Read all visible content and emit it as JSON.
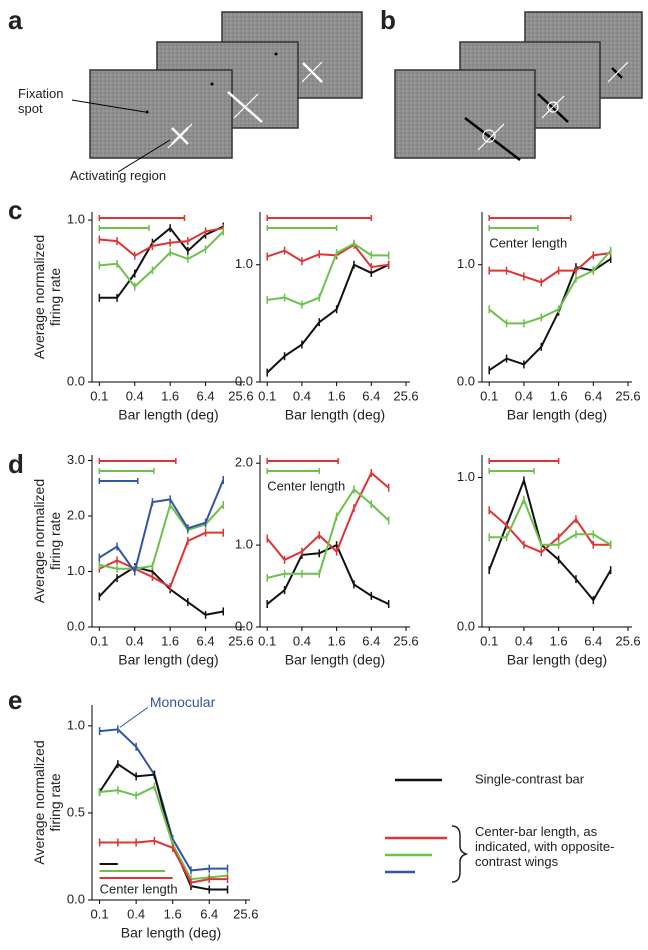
{
  "panels": [
    "a",
    "b",
    "c",
    "d",
    "e"
  ],
  "diagram": {
    "fixation": "Fixation spot",
    "activating": "Activating region"
  },
  "legend": {
    "single": "Single-contrast bar",
    "center": "Center-bar length, as indicated, with opposite-contrast wings"
  },
  "chart_data": [
    {
      "type": "line",
      "xlabel": "Bar length (deg)",
      "ylabel": "Average normalized firing rate",
      "log_x": true,
      "x": [
        0.1,
        0.2,
        0.4,
        0.8,
        1.6,
        3.2,
        6.4,
        12.8
      ],
      "xlim": [
        0.075,
        30
      ],
      "xticks": [
        0.1,
        0.4,
        1.6,
        6.4,
        25.6
      ],
      "ylim": [
        0,
        1.05
      ],
      "yticks": [
        {
          "value": 0,
          "label": "0.0"
        },
        {
          "value": 1,
          "label": "1.0"
        }
      ],
      "series": [
        {
          "color": "#111111",
          "values": [
            0.52,
            0.52,
            0.67,
            0.86,
            0.95,
            0.81,
            0.91,
            0.96
          ]
        },
        {
          "color": "#e03434",
          "values": [
            0.88,
            0.87,
            0.78,
            0.84,
            0.86,
            0.87,
            0.93,
            0.95
          ],
          "center_length": [
            0.1,
            2.8
          ]
        },
        {
          "color": "#6cc24a",
          "values": [
            0.72,
            0.73,
            0.59,
            0.69,
            0.8,
            0.76,
            0.82,
            0.93
          ],
          "center_length": [
            0.1,
            0.7
          ]
        }
      ]
    },
    {
      "type": "line",
      "xlabel": "Bar length (deg)",
      "log_x": true,
      "x": [
        0.1,
        0.2,
        0.4,
        0.8,
        1.6,
        3.2,
        6.4,
        12.8
      ],
      "xlim": [
        0.075,
        30
      ],
      "xticks": [
        0.1,
        0.4,
        1.6,
        6.4,
        25.6
      ],
      "ylim": [
        0,
        1.45
      ],
      "yticks": [
        {
          "value": 0,
          "label": "0.0"
        },
        {
          "value": 1,
          "label": "1.0"
        }
      ],
      "series": [
        {
          "color": "#111111",
          "values": [
            0.08,
            0.22,
            0.32,
            0.51,
            0.62,
            1.0,
            0.93,
            1.0
          ]
        },
        {
          "color": "#e03434",
          "values": [
            1.07,
            1.12,
            1.03,
            1.09,
            1.08,
            1.17,
            0.98,
            1.0
          ],
          "center_length": [
            0.1,
            6.4
          ]
        },
        {
          "color": "#6cc24a",
          "values": [
            0.7,
            0.72,
            0.66,
            0.72,
            1.1,
            1.18,
            1.08,
            1.08
          ],
          "center_length": [
            0.1,
            1.6
          ]
        }
      ]
    },
    {
      "type": "line",
      "xlabel": "Bar length (deg)",
      "log_x": true,
      "annotation": "Center length",
      "x": [
        0.1,
        0.2,
        0.4,
        0.8,
        1.6,
        3.2,
        6.4,
        12.8
      ],
      "xlim": [
        0.075,
        30
      ],
      "xticks": [
        0.1,
        0.4,
        1.6,
        6.4,
        25.6
      ],
      "ylim": [
        0,
        1.45
      ],
      "yticks": [
        {
          "value": 0,
          "label": "0.0"
        },
        {
          "value": 1,
          "label": "1.0"
        }
      ],
      "series": [
        {
          "color": "#111111",
          "values": [
            0.1,
            0.2,
            0.15,
            0.3,
            0.6,
            0.98,
            0.95,
            1.05
          ]
        },
        {
          "color": "#e03434",
          "values": [
            0.95,
            0.95,
            0.9,
            0.85,
            0.95,
            0.95,
            1.08,
            1.1
          ],
          "center_length": [
            0.1,
            2.6
          ]
        },
        {
          "color": "#6cc24a",
          "values": [
            0.62,
            0.5,
            0.5,
            0.55,
            0.62,
            0.88,
            0.95,
            1.12
          ],
          "center_length": [
            0.1,
            0.7
          ]
        }
      ]
    },
    {
      "type": "line",
      "xlabel": "Bar length (deg)",
      "ylabel": "Average normalized firing rate",
      "log_x": true,
      "x": [
        0.1,
        0.2,
        0.4,
        0.8,
        1.6,
        3.2,
        6.4,
        12.8
      ],
      "xlim": [
        0.075,
        30
      ],
      "xticks": [
        0.1,
        0.4,
        1.6,
        6.4,
        25.6
      ],
      "ylim": [
        0,
        3.1
      ],
      "yticks": [
        {
          "value": 0,
          "label": "0.0"
        },
        {
          "value": 1,
          "label": "1.0"
        },
        {
          "value": 2,
          "label": "2.0"
        },
        {
          "value": 3,
          "label": "3.0"
        }
      ],
      "series": [
        {
          "color": "#111111",
          "values": [
            0.55,
            0.88,
            1.08,
            1.0,
            0.68,
            0.45,
            0.22,
            0.28
          ]
        },
        {
          "color": "#e03434",
          "values": [
            1.05,
            1.2,
            1.05,
            0.9,
            0.72,
            1.55,
            1.7,
            1.7
          ],
          "center_length": [
            0.1,
            2
          ]
        },
        {
          "color": "#6cc24a",
          "values": [
            1.12,
            1.05,
            1.05,
            1.1,
            2.2,
            1.75,
            1.85,
            2.2
          ],
          "center_length": [
            0.1,
            0.85
          ]
        },
        {
          "color": "#3454a8",
          "values": [
            1.25,
            1.45,
            1.0,
            2.25,
            2.3,
            1.78,
            1.88,
            2.65
          ],
          "center_length": [
            0.1,
            0.45
          ]
        }
      ]
    },
    {
      "type": "line",
      "xlabel": "Bar length (deg)",
      "log_x": true,
      "annotation": "Center length",
      "x": [
        0.1,
        0.2,
        0.4,
        0.8,
        1.6,
        3.2,
        6.4,
        12.8
      ],
      "xlim": [
        0.075,
        30
      ],
      "xticks": [
        0.1,
        0.4,
        1.6,
        6.4,
        25.6
      ],
      "ylim": [
        0,
        2.1
      ],
      "yticks": [
        {
          "value": 0,
          "label": "0.0"
        },
        {
          "value": 1,
          "label": "1.0"
        },
        {
          "value": 2,
          "label": "2.0"
        }
      ],
      "series": [
        {
          "color": "#111111",
          "values": [
            0.28,
            0.45,
            0.88,
            0.9,
            1.0,
            0.52,
            0.38,
            0.28
          ]
        },
        {
          "color": "#e03434",
          "values": [
            1.08,
            0.82,
            0.92,
            1.12,
            0.92,
            1.45,
            1.88,
            1.7
          ],
          "center_length": [
            0.1,
            1.7
          ]
        },
        {
          "color": "#6cc24a",
          "values": [
            0.6,
            0.65,
            0.65,
            0.65,
            1.35,
            1.68,
            1.5,
            1.3
          ],
          "center_length": [
            0.1,
            0.8
          ]
        }
      ]
    },
    {
      "type": "line",
      "xlabel": "Bar length (deg)",
      "log_x": true,
      "x": [
        0.1,
        0.2,
        0.4,
        0.8,
        1.6,
        3.2,
        6.4,
        12.8
      ],
      "xlim": [
        0.075,
        30
      ],
      "xticks": [
        0.1,
        0.4,
        1.6,
        6.4,
        25.6
      ],
      "ylim": [
        0,
        1.15
      ],
      "yticks": [
        {
          "value": 0,
          "label": "0.0"
        },
        {
          "value": 1,
          "label": "1.0"
        }
      ],
      "series": [
        {
          "color": "#111111",
          "values": [
            0.38,
            0.68,
            0.98,
            0.55,
            0.45,
            0.32,
            0.18,
            0.38
          ]
        },
        {
          "color": "#e03434",
          "values": [
            0.78,
            0.68,
            0.55,
            0.5,
            0.6,
            0.72,
            0.55,
            0.55
          ],
          "center_length": [
            0.1,
            1.6
          ]
        },
        {
          "color": "#6cc24a",
          "values": [
            0.6,
            0.6,
            0.85,
            0.55,
            0.55,
            0.62,
            0.62,
            0.55
          ],
          "center_length": [
            0.1,
            0.6
          ]
        }
      ]
    },
    {
      "type": "line",
      "xlabel": "Bar length (deg)",
      "ylabel": "Average normalized firing rate",
      "log_x": true,
      "annotation": "Center length",
      "x": [
        0.1,
        0.2,
        0.4,
        0.8,
        1.6,
        3.2,
        6.4,
        12.8
      ],
      "xlim": [
        0.075,
        30
      ],
      "xticks": [
        0.1,
        0.4,
        1.6,
        6.4,
        25.6
      ],
      "ylim": [
        0,
        1.12
      ],
      "yticks": [
        {
          "value": 0,
          "label": "0.0"
        },
        {
          "value": 0.5,
          "label": "0.5"
        },
        {
          "value": 1,
          "label": "1.0"
        }
      ],
      "series": [
        {
          "name": "Monocular",
          "color": "#3454a8",
          "values": [
            0.97,
            0.98,
            0.88,
            0.72,
            0.35,
            0.17,
            0.18,
            0.18
          ]
        },
        {
          "color": "#111111",
          "values": [
            0.62,
            0.78,
            0.71,
            0.72,
            0.32,
            0.08,
            0.06,
            0.06
          ],
          "center_length": [
            0.1,
            0.2
          ]
        },
        {
          "color": "#6cc24a",
          "values": [
            0.62,
            0.63,
            0.6,
            0.65,
            0.32,
            0.12,
            0.13,
            0.14
          ],
          "center_length": [
            0.1,
            1.2
          ]
        },
        {
          "color": "#e03434",
          "values": [
            0.33,
            0.33,
            0.33,
            0.34,
            0.3,
            0.1,
            0.12,
            0.12
          ],
          "center_length": [
            0.1,
            1.6
          ]
        }
      ]
    }
  ]
}
